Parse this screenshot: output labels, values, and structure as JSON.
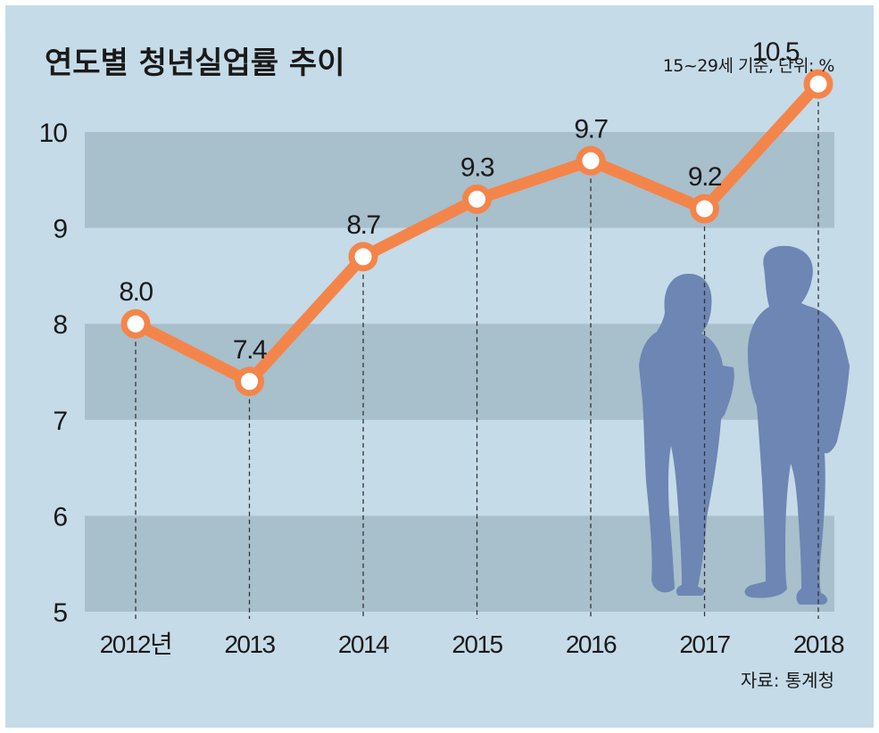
{
  "chart_data": {
    "type": "line",
    "title": "연도별 청년실업률 추이",
    "subtitle": "15~29세 기준, 단위: %",
    "source": "자료: 통계청",
    "x_label_suffix": "년",
    "categories": [
      "2012",
      "2013",
      "2014",
      "2015",
      "2016",
      "2017",
      "2018"
    ],
    "series": [
      {
        "values": [
          8.0,
          7.4,
          8.7,
          9.3,
          9.7,
          9.2,
          10.5
        ]
      }
    ],
    "value_labels": [
      "8.0",
      "7.4",
      "8.7",
      "9.3",
      "9.7",
      "9.2",
      "10.5"
    ],
    "yticks": [
      "5",
      "6",
      "7",
      "8",
      "9",
      "10"
    ],
    "ylim": [
      5,
      10
    ],
    "grid": "alternating horizontal bands",
    "legend": "none",
    "colors": {
      "background": "#c5dbe8",
      "band": "#a8bfcc",
      "line": "#f4854a",
      "marker_fill": "#ffffff",
      "silhouette": "#6d86b3"
    }
  }
}
